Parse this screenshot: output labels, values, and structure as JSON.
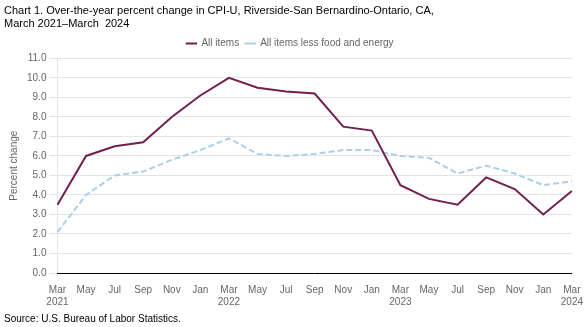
{
  "chart_data": {
    "type": "line",
    "title": [
      "Chart 1. Over-the-year percent change in CPI-U, Riverside-San Bernardino-Ontario, CA,",
      "March 2021–March  2024"
    ],
    "y_label": "Percent change",
    "source": "Source: U.S. Bureau of Labor Statistics.",
    "categories": [
      "Mar\n2021",
      "May",
      "Jul",
      "Sep",
      "Nov",
      "Jan",
      "Mar\n2022",
      "May",
      "Jul",
      "Sep",
      "Nov",
      "Jan",
      "Mar\n2023",
      "May",
      "Jul",
      "Sep",
      "Nov",
      "Jan",
      "Mar\n2024"
    ],
    "series": [
      {
        "name": "All items",
        "color": "#722050",
        "line_style": "solid",
        "values": [
          3.5,
          6.0,
          6.5,
          6.7,
          8.0,
          9.1,
          10.0,
          9.5,
          9.3,
          9.2,
          7.5,
          7.3,
          4.5,
          3.8,
          3.5,
          4.9,
          4.3,
          3.0,
          4.2
        ]
      },
      {
        "name": "All items less food and energy",
        "color": "#aacfea",
        "line_style": "dashed",
        "values": [
          2.1,
          4.0,
          5.0,
          5.2,
          5.8,
          6.3,
          6.9,
          6.1,
          6.0,
          6.1,
          6.3,
          6.3,
          6.0,
          5.9,
          5.1,
          5.5,
          5.1,
          4.5,
          4.7
        ]
      }
    ],
    "ylim": [
      0,
      11
    ],
    "yticks": [
      {
        "value": 0,
        "label": "0.0"
      },
      {
        "value": 1,
        "label": "1.0"
      },
      {
        "value": 2,
        "label": "2.0"
      },
      {
        "value": 3,
        "label": "3.0"
      },
      {
        "value": 4,
        "label": "4.0"
      },
      {
        "value": 5,
        "label": "5.0"
      },
      {
        "value": 6,
        "label": "6.0"
      },
      {
        "value": 7,
        "label": "7.0"
      },
      {
        "value": 8,
        "label": "8.0"
      },
      {
        "value": 9,
        "label": "9.0"
      },
      {
        "value": 10,
        "label": "10.0"
      },
      {
        "value": 11,
        "label": "11.0"
      }
    ],
    "grid": true,
    "legend": "top"
  }
}
